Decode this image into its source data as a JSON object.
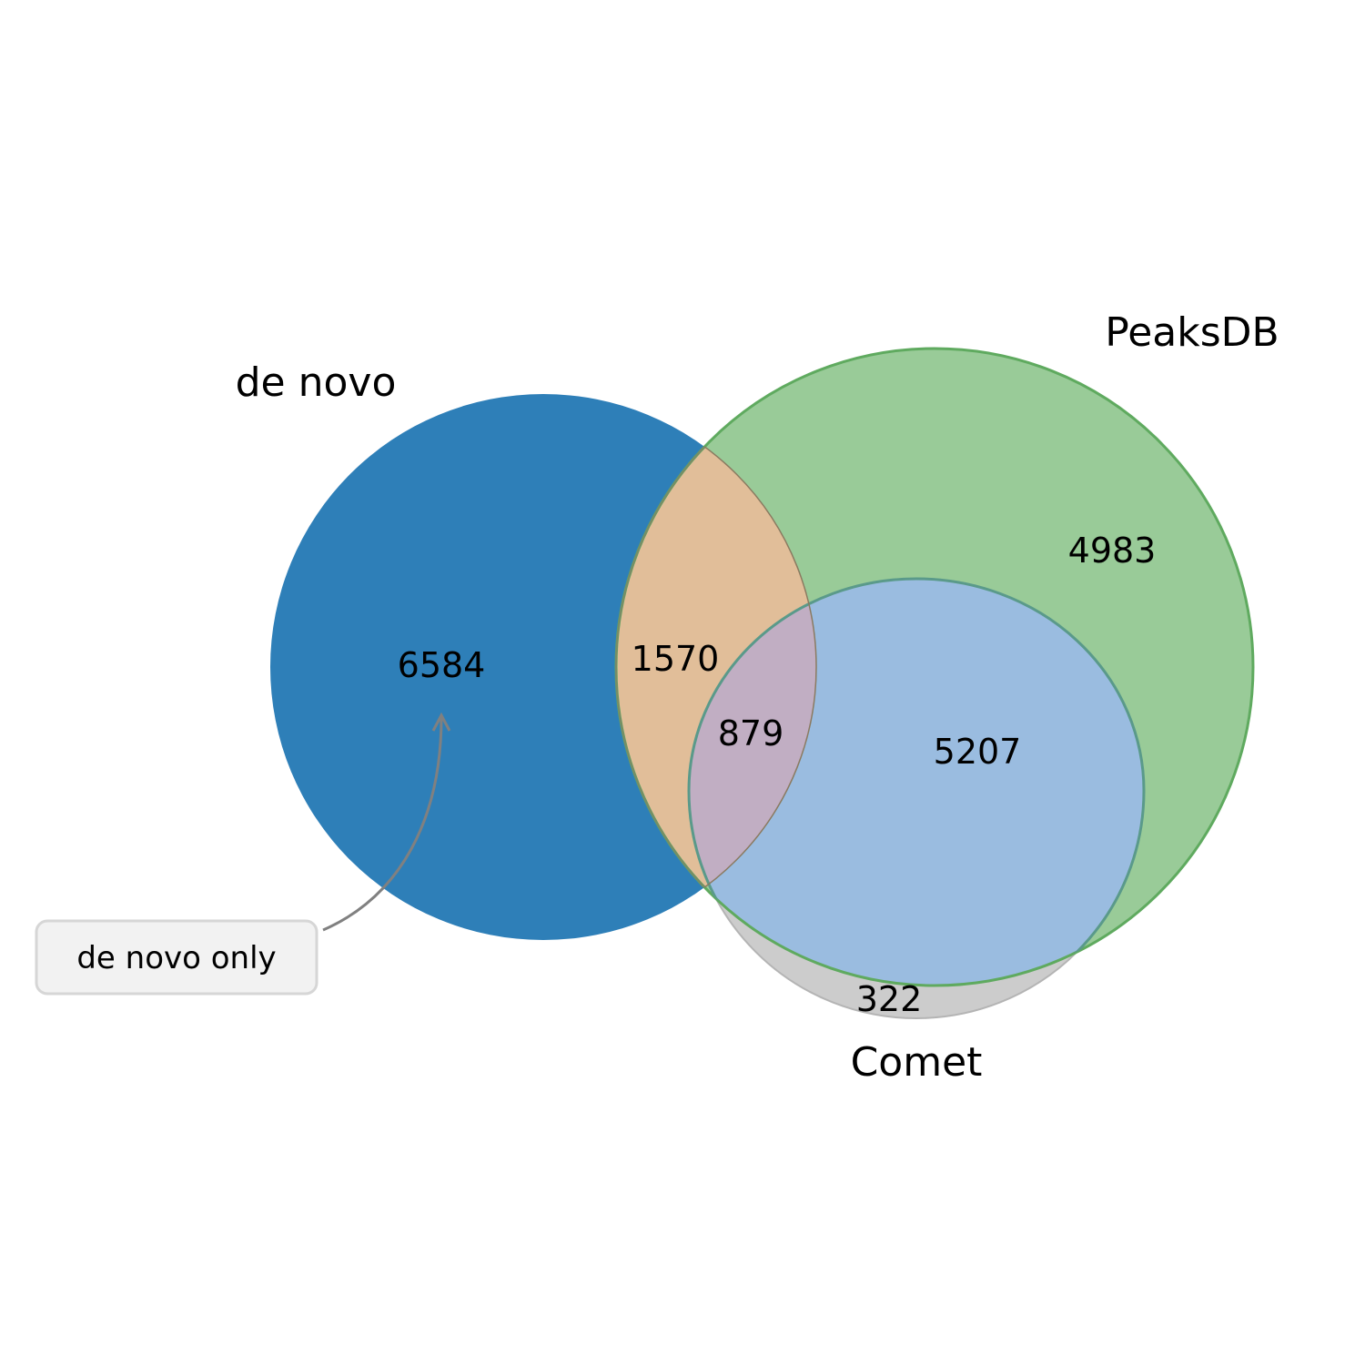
{
  "sets": {
    "de_novo": {
      "label": "de novo",
      "color": "#2e7fb8"
    },
    "peaksdb": {
      "label": "PeaksDB",
      "color": "#99cb98"
    },
    "comet": {
      "label": "Comet",
      "color": "#9abce0"
    }
  },
  "regions": {
    "de_novo_only": "6584",
    "de_novo_peaksdb": "1570",
    "all_three": "879",
    "peaksdb_comet": "5207",
    "peaksdb_only": "4983",
    "comet_only": "322"
  },
  "region_colors": {
    "de_novo_peaksdb": "#e1be99",
    "all_three": "#c1aec3",
    "comet_only": "#cccccc"
  },
  "annotation": {
    "text": "de novo only",
    "target": "de_novo_only"
  }
}
